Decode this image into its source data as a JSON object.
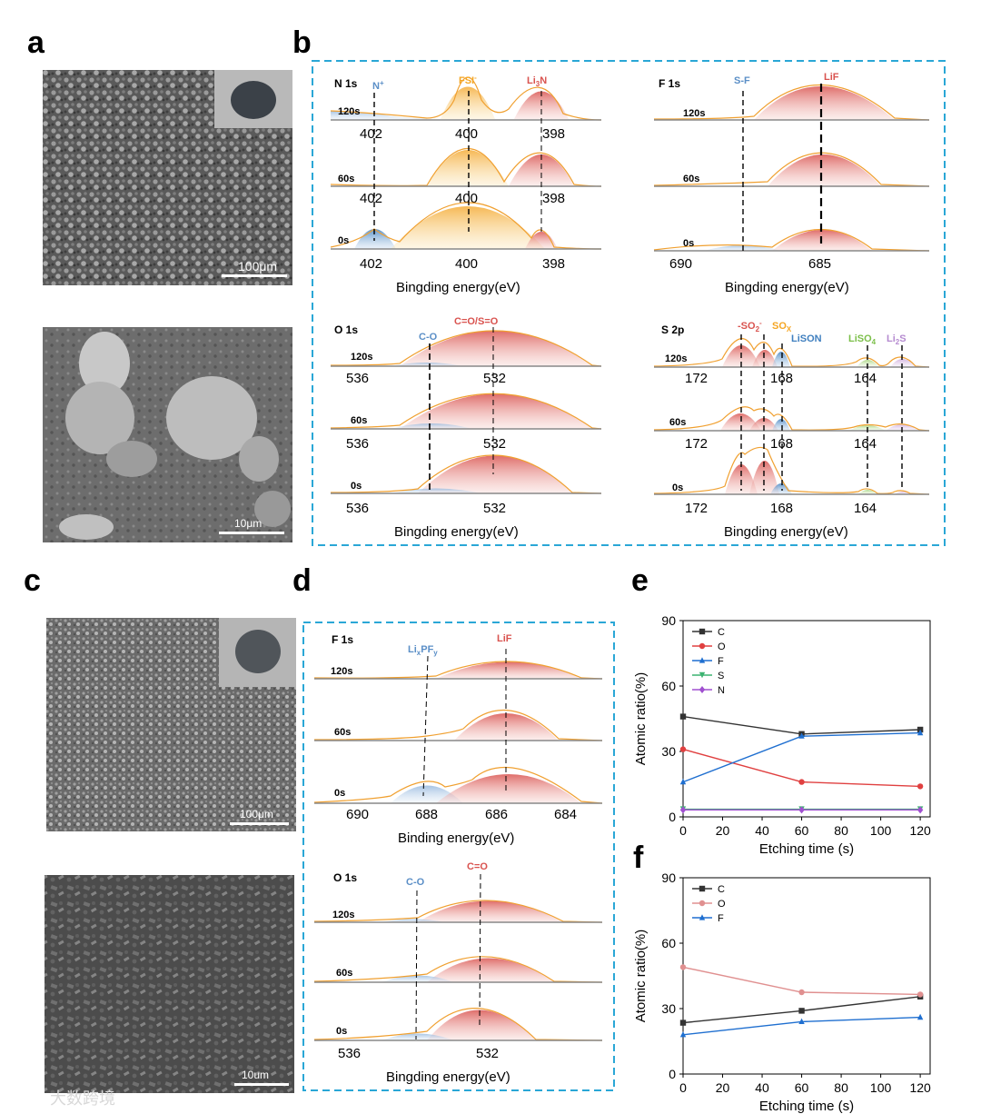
{
  "panel_letters": {
    "a": "a",
    "b": "b",
    "c": "c",
    "d": "d",
    "e": "e",
    "f": "f"
  },
  "sem": {
    "a_top_scale": "100μm",
    "a_bottom_scale": "10μm",
    "c_top_scale": "100μm",
    "c_bottom_scale": "10um"
  },
  "watermark": "大数跨境",
  "colors": {
    "dashed_box": "#2aa7d6",
    "fill_red": "#d9534f",
    "fill_orange": "#f5b041",
    "fill_blue": "#3f7fbf",
    "envelope": "#f0a030"
  },
  "b": {
    "n1s": {
      "title": "N 1s",
      "xlabel": "Bingding energy(eV)",
      "ticks": [
        "402",
        "400",
        "398"
      ],
      "peaks": {
        "np": "N",
        "np_sup": "+",
        "fsi": "FSI",
        "fsi_sup": "-",
        "li3n": "Li",
        "li3n_sub": "3",
        "li3n_tail": "N"
      }
    },
    "f1s": {
      "title": "F 1s",
      "xlabel": "Bingding energy(eV)",
      "ticks": [
        "690",
        "685"
      ],
      "peaks": {
        "sf": "S-F",
        "lif": "LiF"
      }
    },
    "o1s": {
      "title": "O 1s",
      "xlabel": "Bingding energy(eV)",
      "ticks": [
        "536",
        "532"
      ],
      "peaks": {
        "co": "C-O",
        "cso": "C=O/S=O"
      }
    },
    "s2p": {
      "title": "S 2p",
      "xlabel": "Bingding energy(eV)",
      "ticks": [
        "172",
        "168",
        "164"
      ],
      "peaks": {
        "so2": "-SO",
        "so2_sub": "2",
        "so2_sup": "-",
        "sox": "SO",
        "sox_sub": "X",
        "lison": "LiSON",
        "liso4": "LiSO",
        "liso4_sub": "4",
        "li2s": "Li",
        "li2s_sub": "2",
        "li2s_tail": "S"
      }
    },
    "times": [
      "120s",
      "60s",
      "0s"
    ]
  },
  "d": {
    "f1s": {
      "title": "F 1s",
      "xlabel": "Binding energy(eV)",
      "ticks": [
        "690",
        "688",
        "686",
        "684"
      ],
      "peaks": {
        "lixpfy": "Li",
        "lixpfy_x": "x",
        "lixpfy_mid": "PF",
        "lixpfy_y": "y",
        "lif": "LiF"
      }
    },
    "o1s": {
      "title": "O 1s",
      "xlabel": "Bingding energy(eV)",
      "ticks": [
        "536",
        "532"
      ],
      "peaks": {
        "co": "C-O",
        "ceo": "C=O"
      }
    },
    "times": [
      "120s",
      "60s",
      "0s"
    ]
  },
  "chart_data": [
    {
      "id": "e",
      "type": "line",
      "xlabel": "Etching time (s)",
      "ylabel": "Atomic ratio(%)",
      "xlim": [
        0,
        125
      ],
      "ylim": [
        0,
        90
      ],
      "xticks": [
        0,
        20,
        40,
        60,
        80,
        100,
        120
      ],
      "yticks": [
        0,
        30,
        60,
        90
      ],
      "x": [
        0,
        60,
        120
      ],
      "legend_position": "top-left",
      "series": [
        {
          "name": "C",
          "values": [
            46,
            38,
            40
          ],
          "color": "#333333",
          "marker": "square"
        },
        {
          "name": "O",
          "values": [
            31,
            16,
            14
          ],
          "color": "#e04040",
          "marker": "circle"
        },
        {
          "name": "F",
          "values": [
            16,
            37,
            38.5
          ],
          "color": "#1f6fd0",
          "marker": "triangle"
        },
        {
          "name": "S",
          "values": [
            3.5,
            3.5,
            3.5
          ],
          "color": "#3cb371",
          "marker": "triangle-down"
        },
        {
          "name": "N",
          "values": [
            3.2,
            3.2,
            3.2
          ],
          "color": "#a050d0",
          "marker": "diamond"
        }
      ]
    },
    {
      "id": "f",
      "type": "line",
      "xlabel": "Etching time (s)",
      "ylabel": "Atomic ratio(%)",
      "xlim": [
        0,
        125
      ],
      "ylim": [
        0,
        90
      ],
      "xticks": [
        0,
        20,
        40,
        60,
        80,
        100,
        120
      ],
      "yticks": [
        0,
        30,
        60,
        90
      ],
      "x": [
        0,
        60,
        120
      ],
      "legend_position": "top-left",
      "series": [
        {
          "name": "C",
          "values": [
            23.5,
            29,
            35.5
          ],
          "color": "#333333",
          "marker": "square"
        },
        {
          "name": "O",
          "values": [
            49,
            37.5,
            36.5
          ],
          "color": "#e09090",
          "marker": "circle"
        },
        {
          "name": "F",
          "values": [
            18,
            24,
            26
          ],
          "color": "#1f6fd0",
          "marker": "triangle"
        }
      ]
    }
  ]
}
